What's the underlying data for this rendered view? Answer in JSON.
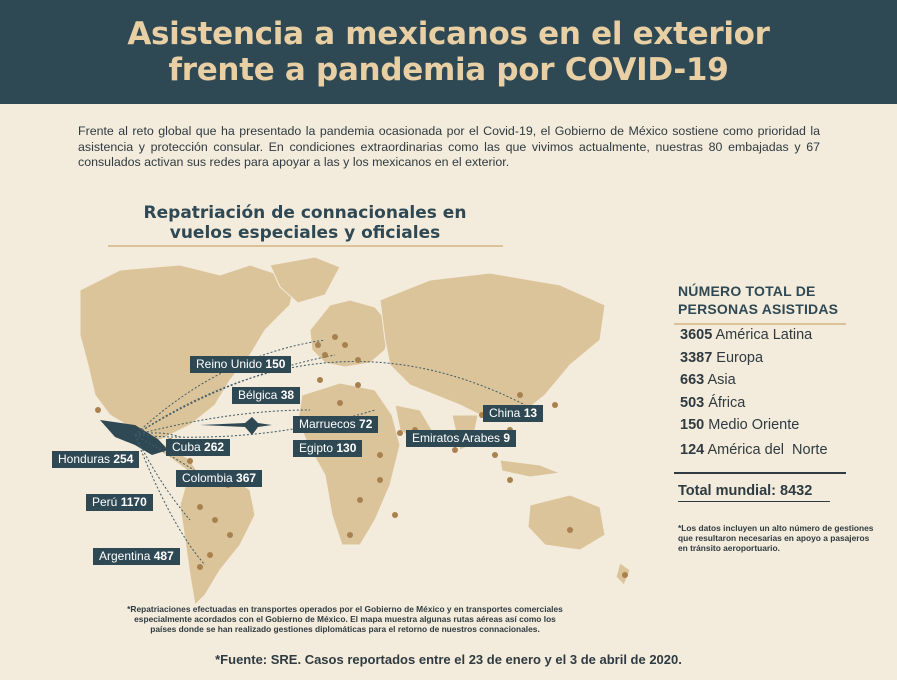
{
  "header": {
    "title_line1": "Asistencia a mexicanos en el exterior",
    "title_line2": "frente a pandemia por COVID-19"
  },
  "intro": "Frente al reto global que ha presentado la pandemia ocasionada por el Covid-19, el Gobierno de México sostiene como prioridad la asistencia y protección consular. En condiciones extraordinarias como las que vivimos actualmente, nuestras 80 embajadas y 67 consulados activan sus redes para apoyar a las y los mexicanos en el exterior.",
  "section": {
    "title_line1": "Repatriación de connacionales en",
    "title_line2": "vuelos especiales y oficiales"
  },
  "map_labels": [
    {
      "name": "Reino Unido",
      "value": "150"
    },
    {
      "name": "Bélgica",
      "value": "38"
    },
    {
      "name": "China",
      "value": "13"
    },
    {
      "name": "Marruecos",
      "value": "72"
    },
    {
      "name": "Emiratos Arabes",
      "value": "9"
    },
    {
      "name": "Egipto",
      "value": "130"
    },
    {
      "name": "Cuba",
      "value": "262"
    },
    {
      "name": "Honduras",
      "value": "254"
    },
    {
      "name": "Colombia",
      "value": "367"
    },
    {
      "name": "Perú",
      "value": "1170"
    },
    {
      "name": "Argentina",
      "value": "487"
    }
  ],
  "stats": {
    "title_line1": "NÚMERO TOTAL DE",
    "title_line2": "PERSONAS ASISTIDAS",
    "rows": [
      {
        "value": "3605",
        "label": "América Latina"
      },
      {
        "value": "3387",
        "label": "Europa"
      },
      {
        "value": "663",
        "label": "Asia"
      },
      {
        "value": "503",
        "label": "África"
      },
      {
        "value": "150",
        "label": "Medio Oriente"
      },
      {
        "value": "124",
        "label": "América del  Norte"
      }
    ],
    "total": "Total mundial: 8432"
  },
  "note_right": "*Los datos incluyen un alto número de gestiones que resultaron necesarias en apoyo a pasajeros en tránsito aeroportuario.",
  "note_bottom": "*Repatriaciones efectuadas en transportes operados por el Gobierno de México y en transportes comerciales especialmente acordados con el Gobierno de México. El mapa muestra algunas rutas aéreas así como los países donde se han realizado gestiones diplomáticas para el retorno de nuestros connacionales.",
  "source": "*Fuente: SRE. Casos reportados entre el 23 de enero y el 3 de abril de 2020.",
  "colors": {
    "banner": "#2f4954",
    "title": "#e9cfa4",
    "background": "#f3ebdc",
    "land": "#dcc49a",
    "dot": "#a8814f",
    "mexico": "#2f4954"
  }
}
